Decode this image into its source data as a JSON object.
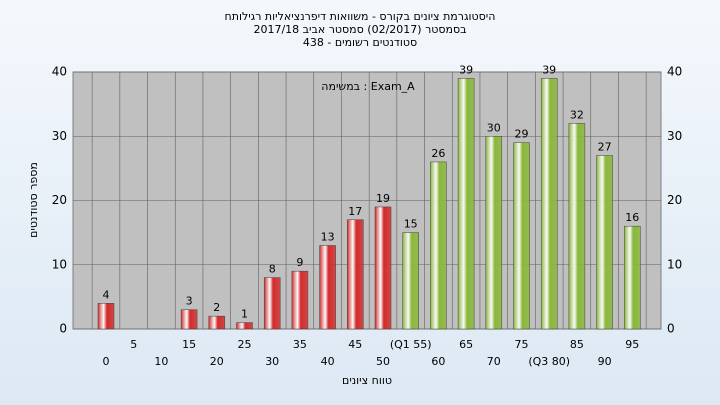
{
  "chart_data": {
    "type": "bar",
    "title": "היסטוגרמת ציונים בקורס - משוואות דיפרנציאליות רגילותח",
    "subtitle": "בסמסטר (02/2017) סמסטר אביב 2017/18",
    "subtitle2": "סטודנטים רשומים - 438",
    "annotation": "במשימה : Exam_A",
    "xlabel": "טווח ציונים",
    "ylabel": "מספר סטודנטים",
    "categories": [
      "0",
      "5",
      "10",
      "15",
      "20",
      "25",
      "30",
      "35",
      "40",
      "45",
      "50",
      "(Q1 55)",
      "60",
      "65",
      "70",
      "75",
      "(Q3 80)",
      "85",
      "90",
      "95"
    ],
    "values": [
      4,
      0,
      0,
      3,
      2,
      1,
      8,
      9,
      13,
      17,
      19,
      15,
      26,
      39,
      30,
      29,
      39,
      32,
      27,
      16
    ],
    "colors": [
      "#d42a2a",
      "#d42a2a",
      "#d42a2a",
      "#d42a2a",
      "#d42a2a",
      "#d42a2a",
      "#d42a2a",
      "#d42a2a",
      "#d42a2a",
      "#d42a2a",
      "#d42a2a",
      "#8ab83a",
      "#8ab83a",
      "#8ab83a",
      "#8ab83a",
      "#8ab83a",
      "#8ab83a",
      "#8ab83a",
      "#8ab83a",
      "#8ab83a"
    ],
    "ylim": [
      0,
      40
    ],
    "yticks": [
      0,
      10,
      20,
      30,
      40
    ],
    "grid": true
  }
}
